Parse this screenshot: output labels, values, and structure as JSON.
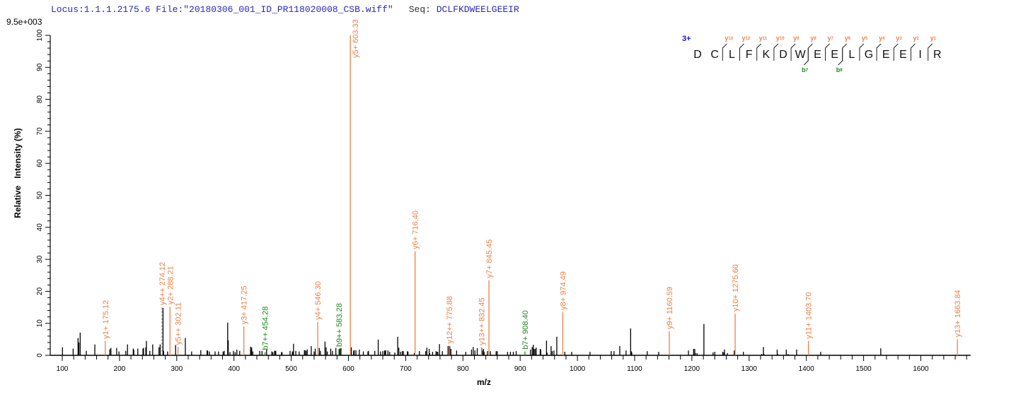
{
  "header": {
    "locus": "Locus:1.1.1.2175.6",
    "file": "File:\"20180306_001_ID_PR118020008_CSB.wiff\"",
    "seq_label": "Seq:",
    "sequence": "DCLFKDWEELGEEIR"
  },
  "colors": {
    "y_ion": "#ef7f45",
    "b_ion": "#1a8a1a",
    "unmatched": "#000000",
    "header": "#2a2ab8",
    "charge": "#1010e0"
  },
  "chart_data": {
    "type": "bar",
    "title": "",
    "max_intensity_label": "9.5e+003",
    "xlabel": "m/z",
    "ylabel": "Relative   Intensity (%)",
    "xlim": [
      79,
      1687
    ],
    "ylim": [
      0,
      100
    ],
    "xticks": [
      "100",
      "200",
      "300",
      "400",
      "500",
      "600",
      "700",
      "800",
      "900",
      "1000",
      "1100",
      "1200",
      "1300",
      "1400",
      "1500",
      "1600"
    ],
    "yticks": [
      "0",
      "10",
      "20",
      "30",
      "40",
      "50",
      "60",
      "70",
      "80",
      "90",
      "100"
    ],
    "grid": false,
    "annotated_peaks": [
      {
        "label": "y1+ 175.12",
        "mz": 175.12,
        "intensity": 4.5,
        "ion": "y"
      },
      {
        "label": "y4++ 274.12",
        "mz": 274.12,
        "intensity": 15,
        "ion": "y",
        "dashed": true
      },
      {
        "label": "y2+ 288.21",
        "mz": 288.21,
        "intensity": 15.2,
        "ion": "y"
      },
      {
        "label": "y5++ 302.11",
        "mz": 302.11,
        "intensity": 2.6,
        "ion": "y"
      },
      {
        "label": "y3+ 417.25",
        "mz": 417.25,
        "intensity": 9,
        "ion": "y"
      },
      {
        "label": "b7++ 454.28",
        "mz": 454.28,
        "intensity": 1,
        "ion": "b"
      },
      {
        "label": "y4+ 546.30",
        "mz": 546.3,
        "intensity": 10.4,
        "ion": "y"
      },
      {
        "label": "b9++ 583.28",
        "mz": 583.28,
        "intensity": 2,
        "ion": "b"
      },
      {
        "label": "y5+ 603.33",
        "mz": 603.33,
        "intensity": 100,
        "ion": "y"
      },
      {
        "label": "y6+ 716.40",
        "mz": 716.4,
        "intensity": 32.5,
        "ion": "y"
      },
      {
        "label": "y12++ 775.88",
        "mz": 775.88,
        "intensity": 3,
        "ion": "y"
      },
      {
        "label": "y13++ 832.45",
        "mz": 832.45,
        "intensity": 2.5,
        "ion": "y"
      },
      {
        "label": "y7+ 845.45",
        "mz": 845.45,
        "intensity": 23.5,
        "ion": "y"
      },
      {
        "label": "b7+ 908.40",
        "mz": 908.4,
        "intensity": 1.2,
        "ion": "b"
      },
      {
        "label": "y8+ 974.49",
        "mz": 974.49,
        "intensity": 13.5,
        "ion": "y"
      },
      {
        "label": "y9+ 1160.59",
        "mz": 1160.59,
        "intensity": 7.5,
        "ion": "y"
      },
      {
        "label": "y10+ 1275.60",
        "mz": 1275.6,
        "intensity": 13,
        "ion": "y"
      },
      {
        "label": "y11+ 1403.70",
        "mz": 1403.7,
        "intensity": 4.5,
        "ion": "y"
      },
      {
        "label": "y13+ 1663.84",
        "mz": 1663.84,
        "intensity": 5,
        "ion": "y"
      }
    ],
    "unmatched_peaks": [
      [
        100.4,
        2.5
      ],
      [
        119,
        2.1
      ],
      [
        127.6,
        5.4
      ],
      [
        129,
        4.0
      ],
      [
        131.3,
        7.1
      ],
      [
        142,
        1.4
      ],
      [
        156.9,
        3.4
      ],
      [
        183,
        1.9
      ],
      [
        185,
        2.3
      ],
      [
        195,
        2.3
      ],
      [
        199,
        1.2
      ],
      [
        211,
        1.4
      ],
      [
        214,
        3.4
      ],
      [
        224,
        2.1
      ],
      [
        225,
        1.7
      ],
      [
        232,
        2.1
      ],
      [
        241,
        2.1
      ],
      [
        242,
        2.3
      ],
      [
        246,
        2.5
      ],
      [
        247,
        4.5
      ],
      [
        253,
        1.4
      ],
      [
        258,
        3.4
      ],
      [
        269,
        2.5
      ],
      [
        271,
        3.4
      ],
      [
        276,
        14.8
      ],
      [
        277,
        1.4
      ],
      [
        284,
        1.2
      ],
      [
        298,
        3.2
      ],
      [
        315,
        5.4
      ],
      [
        326,
        1.2
      ],
      [
        342,
        1.6
      ],
      [
        353,
        1.6
      ],
      [
        354,
        1.4
      ],
      [
        357,
        1.2
      ],
      [
        367,
        1.2
      ],
      [
        373,
        1.2
      ],
      [
        381,
        1.2
      ],
      [
        383,
        1.4
      ],
      [
        389,
        10.2
      ],
      [
        390,
        4.7
      ],
      [
        393,
        1.0
      ],
      [
        399,
        1.4
      ],
      [
        402,
        1.0
      ],
      [
        405,
        1.8
      ],
      [
        410,
        1.4
      ],
      [
        429,
        2.7
      ],
      [
        430,
        1.8
      ],
      [
        431,
        2.5
      ],
      [
        433,
        1.2
      ],
      [
        445,
        1.4
      ],
      [
        449,
        1.4
      ],
      [
        457,
        1.8
      ],
      [
        466,
        1.2
      ],
      [
        468,
        1.0
      ],
      [
        471,
        1.4
      ],
      [
        472,
        1.4
      ],
      [
        473,
        1.4
      ],
      [
        483,
        1.0
      ],
      [
        484,
        1.0
      ],
      [
        498,
        1.4
      ],
      [
        502,
        1.2
      ],
      [
        503,
        1.2
      ],
      [
        504,
        3.6
      ],
      [
        508,
        1.4
      ],
      [
        514,
        1.2
      ],
      [
        523,
        1.6
      ],
      [
        524,
        1.6
      ],
      [
        526,
        1.4
      ],
      [
        528,
        1.8
      ],
      [
        535,
        2.9
      ],
      [
        540,
        1.2
      ],
      [
        542,
        2.1
      ],
      [
        549,
        2.3
      ],
      [
        551,
        1.4
      ],
      [
        559,
        4.3
      ],
      [
        561,
        2.5
      ],
      [
        563,
        1.2
      ],
      [
        569,
        2.1
      ],
      [
        572,
        1.4
      ],
      [
        578,
        2.3
      ],
      [
        584,
        1.6
      ],
      [
        585,
        2.1
      ],
      [
        587,
        2.3
      ],
      [
        605,
        2.5
      ],
      [
        609,
        1.4
      ],
      [
        610,
        1.6
      ],
      [
        613,
        1.6
      ],
      [
        619,
        1.8
      ],
      [
        626,
        1.2
      ],
      [
        634,
        1.2
      ],
      [
        635,
        1.4
      ],
      [
        646,
        1.4
      ],
      [
        652,
        4.9
      ],
      [
        656,
        1.2
      ],
      [
        660,
        1.3
      ],
      [
        663,
        1.5
      ],
      [
        664,
        1.4
      ],
      [
        665,
        1.6
      ],
      [
        669,
        1.5
      ],
      [
        672,
        1.1
      ],
      [
        681,
        0.9
      ],
      [
        686,
        5.8
      ],
      [
        688,
        2.4
      ],
      [
        691,
        1.1
      ],
      [
        694,
        1.3
      ],
      [
        696,
        1.3
      ],
      [
        703,
        1.3
      ],
      [
        704,
        1.1
      ],
      [
        715,
        0.7
      ],
      [
        724,
        1.3
      ],
      [
        735,
        1.3
      ],
      [
        737,
        2.4
      ],
      [
        741,
        2.0
      ],
      [
        742,
        0.7
      ],
      [
        747,
        1.1
      ],
      [
        753,
        1.3
      ],
      [
        755,
        1.1
      ],
      [
        756,
        1.1
      ],
      [
        759,
        3.5
      ],
      [
        764,
        1.3
      ],
      [
        774,
        2.9
      ],
      [
        777,
        2.9
      ],
      [
        779,
        2.0
      ],
      [
        789,
        1.5
      ],
      [
        805,
        1.1
      ],
      [
        815,
        1.8
      ],
      [
        818,
        2.6
      ],
      [
        821,
        1.5
      ],
      [
        825,
        2.2
      ],
      [
        833,
        2.2
      ],
      [
        834,
        1.5
      ],
      [
        836,
        2.0
      ],
      [
        837,
        1.1
      ],
      [
        843,
        1.3
      ],
      [
        848,
        1.3
      ],
      [
        858,
        1.3
      ],
      [
        860,
        1.3
      ],
      [
        878,
        1.1
      ],
      [
        883,
        1.1
      ],
      [
        888,
        1.1
      ],
      [
        893,
        1.3
      ],
      [
        918,
        1.8
      ],
      [
        921,
        2.6
      ],
      [
        923,
        3.3
      ],
      [
        924,
        2.0
      ],
      [
        926,
        2.0
      ],
      [
        928,
        2.4
      ],
      [
        935,
        2.0
      ],
      [
        936,
        1.8
      ],
      [
        946,
        4.6
      ],
      [
        947,
        0.9
      ],
      [
        954,
        2.9
      ],
      [
        956,
        1.3
      ],
      [
        959,
        1.5
      ],
      [
        964,
        5.8
      ],
      [
        978,
        1.1
      ],
      [
        990,
        1.1
      ],
      [
        1022,
        1.1
      ],
      [
        1059,
        1.3
      ],
      [
        1064,
        1.3
      ],
      [
        1074,
        2.9
      ],
      [
        1085,
        1.5
      ],
      [
        1093,
        8.4
      ],
      [
        1094,
        1.3
      ],
      [
        1095,
        0.9
      ],
      [
        1122,
        1.3
      ],
      [
        1142,
        1.1
      ],
      [
        1194,
        1.5
      ],
      [
        1203,
        2.0
      ],
      [
        1205,
        2.0
      ],
      [
        1206,
        0.7
      ],
      [
        1209,
        0.7
      ],
      [
        1221,
        9.8
      ],
      [
        1237,
        0.9
      ],
      [
        1240,
        1.1
      ],
      [
        1254,
        1.1
      ],
      [
        1256,
        0.9
      ],
      [
        1257,
        1.8
      ],
      [
        1262,
        0.7
      ],
      [
        1274,
        1.5
      ],
      [
        1290,
        1.1
      ],
      [
        1322,
        0.4
      ],
      [
        1325,
        2.6
      ],
      [
        1326,
        0.4
      ],
      [
        1349,
        1.8
      ],
      [
        1350,
        0.4
      ],
      [
        1365,
        1.8
      ],
      [
        1368,
        0.4
      ],
      [
        1383,
        1.8
      ],
      [
        1425,
        1.1
      ],
      [
        1530,
        2.2
      ]
    ]
  },
  "peptide_map": {
    "charge": "3+",
    "residues": [
      "D",
      "C",
      "L",
      "F",
      "K",
      "D",
      "W",
      "E",
      "E",
      "L",
      "G",
      "E",
      "E",
      "I",
      "R"
    ],
    "y_ions": [
      {
        "after": 2,
        "label": "y",
        "num": "13"
      },
      {
        "after": 3,
        "label": "y",
        "num": "12"
      },
      {
        "after": 4,
        "label": "y",
        "num": "11"
      },
      {
        "after": 5,
        "label": "y",
        "num": "10"
      },
      {
        "after": 6,
        "label": "y",
        "num": "9"
      },
      {
        "after": 7,
        "label": "y",
        "num": "8"
      },
      {
        "after": 8,
        "label": "y",
        "num": "7"
      },
      {
        "after": 9,
        "label": "y",
        "num": "6"
      },
      {
        "after": 10,
        "label": "y",
        "num": "5"
      },
      {
        "after": 11,
        "label": "y",
        "num": "4"
      },
      {
        "after": 12,
        "label": "y",
        "num": "3"
      },
      {
        "after": 13,
        "label": "y",
        "num": "2"
      },
      {
        "after": 14,
        "label": "y",
        "num": "1"
      }
    ],
    "b_ions": [
      {
        "after": 7,
        "label": "b",
        "num": "7"
      },
      {
        "after": 9,
        "label": "b",
        "num": "9"
      }
    ]
  }
}
